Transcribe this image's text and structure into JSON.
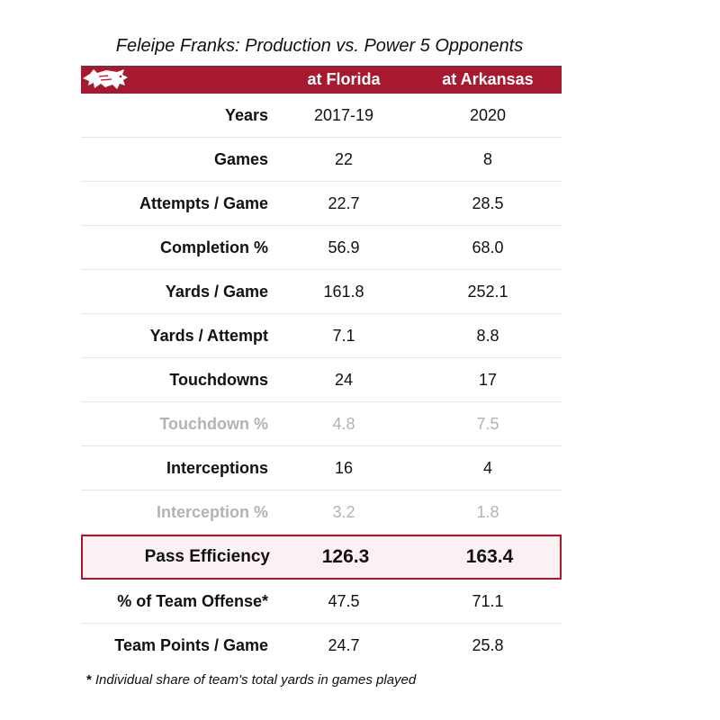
{
  "chart_data": {
    "type": "table",
    "title": "Feleipe Franks: Production vs. Power 5 Opponents",
    "columns": [
      "at Florida",
      "at Arkansas"
    ],
    "rows": [
      {
        "label": "Years",
        "values": [
          "2017-19",
          "2020"
        ],
        "style": "normal"
      },
      {
        "label": "Games",
        "values": [
          "22",
          "8"
        ],
        "style": "normal"
      },
      {
        "label": "Attempts / Game",
        "values": [
          "22.7",
          "28.5"
        ],
        "style": "normal"
      },
      {
        "label": "Completion %",
        "values": [
          "56.9",
          "68.0"
        ],
        "style": "normal"
      },
      {
        "label": "Yards / Game",
        "values": [
          "161.8",
          "252.1"
        ],
        "style": "normal"
      },
      {
        "label": "Yards / Attempt",
        "values": [
          "7.1",
          "8.8"
        ],
        "style": "normal"
      },
      {
        "label": "Touchdowns",
        "values": [
          "24",
          "17"
        ],
        "style": "normal"
      },
      {
        "label": "Touchdown %",
        "values": [
          "4.8",
          "7.5"
        ],
        "style": "muted"
      },
      {
        "label": "Interceptions",
        "values": [
          "16",
          "4"
        ],
        "style": "normal"
      },
      {
        "label": "Interception %",
        "values": [
          "3.2",
          "1.8"
        ],
        "style": "muted"
      },
      {
        "label": "Pass Efficiency",
        "values": [
          "126.3",
          "163.4"
        ],
        "style": "highlight"
      },
      {
        "label": "% of Team Offense*",
        "values": [
          "47.5",
          "71.1"
        ],
        "style": "normal"
      },
      {
        "label": "Team Points / Game",
        "values": [
          "24.7",
          "25.8"
        ],
        "style": "normal"
      }
    ],
    "footnote_marker": "*",
    "footnote": "Individual share of team's total yards in games played"
  },
  "colors": {
    "header": "#a6192e",
    "highlight_bg": "#fbf1f2",
    "muted_text": "#b3b3b3"
  },
  "icons": {
    "logo": "razorback-hog-icon"
  }
}
